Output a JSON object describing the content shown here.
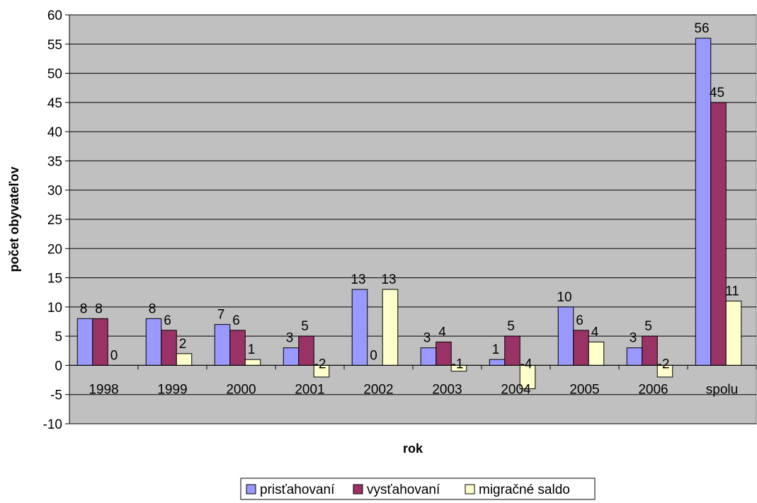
{
  "chart_data": {
    "type": "bar",
    "xlabel": "rok",
    "ylabel": "počet obyvateľov",
    "ylim": [
      -10,
      60
    ],
    "ytick_step": 5,
    "grid": true,
    "legend_position": "bottom",
    "plot_background": "#c0c0c0",
    "categories": [
      "1998",
      "1999",
      "2000",
      "2001",
      "2002",
      "2003",
      "2004",
      "2005",
      "2006",
      "spolu"
    ],
    "series": [
      {
        "name": "prisťahovaní",
        "color": "#9999ff",
        "values": [
          8,
          8,
          7,
          3,
          13,
          3,
          1,
          10,
          3,
          56
        ]
      },
      {
        "name": "vysťahovaní",
        "color": "#993366",
        "values": [
          8,
          6,
          6,
          5,
          0,
          4,
          5,
          6,
          5,
          45
        ]
      },
      {
        "name": "migračné saldo",
        "color": "#ffffcc",
        "values": [
          0,
          2,
          1,
          -2,
          13,
          -1,
          -4,
          4,
          -2,
          11
        ]
      }
    ]
  }
}
